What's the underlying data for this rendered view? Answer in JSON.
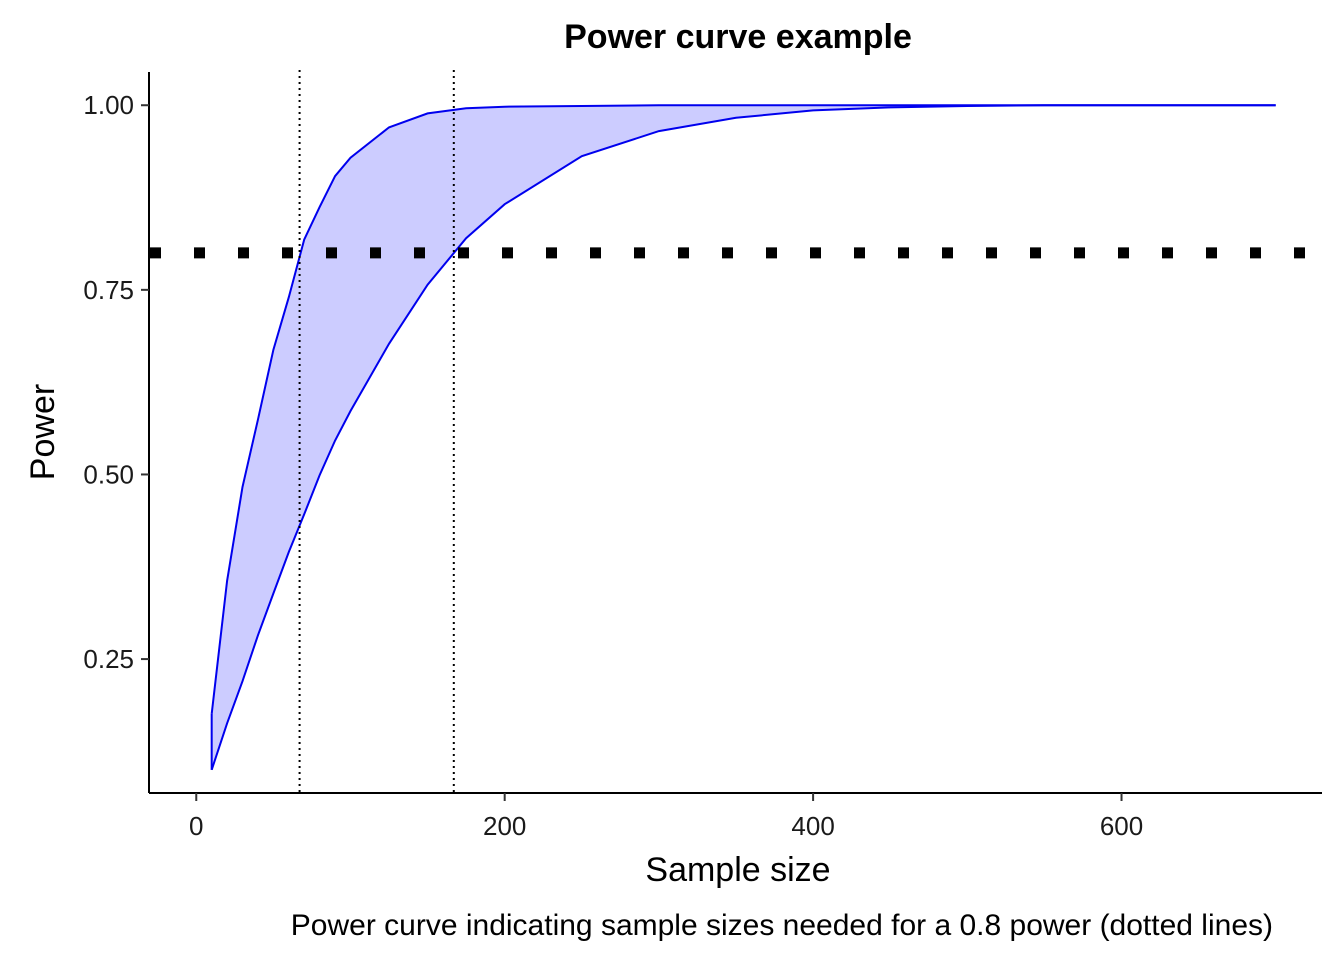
{
  "chart_data": {
    "type": "area",
    "title": "Power curve example",
    "xlabel": "Sample size",
    "ylabel": "Power",
    "caption": "Power curve indicating sample sizes needed for a 0.8 power (dotted lines)",
    "xlim": [
      -30,
      730
    ],
    "ylim": [
      0.07,
      1.045
    ],
    "x_ticks": [
      0,
      200,
      400,
      600
    ],
    "x_tick_labels": [
      "0",
      "200",
      "400",
      "600"
    ],
    "y_ticks": [
      0.25,
      0.5,
      0.75,
      1.0
    ],
    "y_tick_labels": [
      "0.25",
      "0.50",
      "0.75",
      "1.00"
    ],
    "grid": false,
    "legend": "none",
    "band": {
      "x": [
        10,
        20,
        30,
        40,
        50,
        60,
        70,
        80,
        90,
        100,
        125,
        150,
        175,
        200,
        250,
        300,
        350,
        400,
        450,
        500,
        550,
        600,
        650,
        700
      ],
      "upper": [
        0.176,
        0.356,
        0.483,
        0.574,
        0.669,
        0.74,
        0.818,
        0.862,
        0.904,
        0.929,
        0.97,
        0.989,
        0.996,
        0.998,
        0.999,
        1.0,
        1.0,
        1.0,
        1.0,
        1.0,
        1.0,
        1.0,
        1.0,
        1.0
      ],
      "lower": [
        0.1,
        0.163,
        0.22,
        0.282,
        0.339,
        0.395,
        0.446,
        0.499,
        0.546,
        0.586,
        0.677,
        0.757,
        0.82,
        0.866,
        0.931,
        0.965,
        0.983,
        0.993,
        0.997,
        0.999,
        1.0,
        1.0,
        1.0,
        1.0
      ],
      "fill": "#ccccff",
      "line_color": "#0000ee"
    },
    "power_threshold": 0.8,
    "threshold_sample_sizes": [
      67,
      167
    ]
  }
}
